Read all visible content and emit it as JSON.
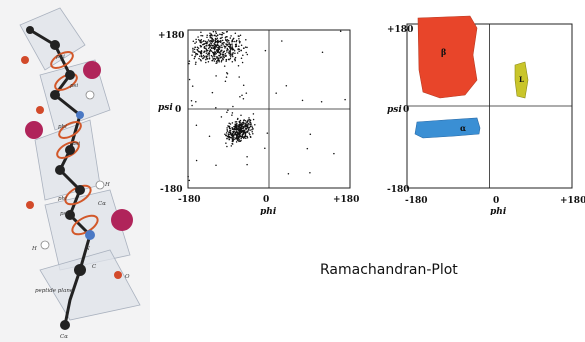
{
  "caption": "Ramachandran-Plot",
  "structure": {
    "labels": [
      "phi",
      "psi",
      "phi",
      "psi",
      "phi",
      "psi",
      "H",
      "N",
      "C",
      "O",
      "Cα",
      "peptide plane",
      "Cα",
      "H"
    ]
  },
  "chart_data": [
    {
      "type": "scatter",
      "xlabel": "phi",
      "ylabel": "psi",
      "xlim": [
        -180,
        180
      ],
      "ylim": [
        -180,
        180
      ],
      "x_ticks": [
        "-180",
        "0",
        "+180"
      ],
      "y_ticks": [
        "+180",
        "0",
        "-180"
      ],
      "clusters": [
        {
          "region": "beta",
          "phi_range": [
            -180,
            -45
          ],
          "psi_range": [
            100,
            180
          ],
          "count": 420
        },
        {
          "region": "alpha",
          "phi_range": [
            -100,
            -30
          ],
          "psi_range": [
            -70,
            -10
          ],
          "count": 340
        },
        {
          "region": "scattered",
          "phi_range": [
            -180,
            180
          ],
          "psi_range": [
            -180,
            180
          ],
          "count": 60
        }
      ]
    },
    {
      "type": "area",
      "xlabel": "phi",
      "ylabel": "psi",
      "xlim": [
        -180,
        180
      ],
      "ylim": [
        -180,
        180
      ],
      "x_ticks": [
        "-180",
        "0",
        "+180"
      ],
      "y_ticks": [
        "+180",
        "0",
        "-180"
      ],
      "regions": [
        {
          "label": "β",
          "color": "#e8452a"
        },
        {
          "label": "L",
          "color": "#c9c52a"
        },
        {
          "label": "α",
          "color": "#3a8fd4"
        }
      ]
    }
  ]
}
